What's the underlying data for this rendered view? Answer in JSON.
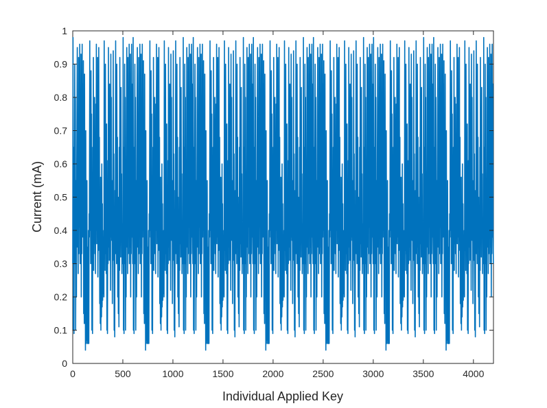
{
  "chart_data": {
    "type": "line",
    "title": "",
    "xlabel": "Individual Applied Key",
    "ylabel": "Current (mA)",
    "xlim": [
      0,
      4200
    ],
    "ylim": [
      0,
      1
    ],
    "xticks": [
      0,
      500,
      1000,
      1500,
      2000,
      2500,
      3000,
      3500,
      4000
    ],
    "yticks": [
      0,
      0.1,
      0.2,
      0.3,
      0.4,
      0.5,
      0.6,
      0.7,
      0.8,
      0.9,
      1
    ],
    "xtick_labels": [
      "0",
      "500",
      "1000",
      "1500",
      "2000",
      "2500",
      "3000",
      "3500",
      "4000"
    ],
    "ytick_labels": [
      "0",
      "0.1",
      "0.2",
      "0.3",
      "0.4",
      "0.5",
      "0.6",
      "0.7",
      "0.8",
      "0.9",
      "1"
    ],
    "grid": false,
    "legend": "none",
    "series": [
      {
        "name": "",
        "color": "#0072BD",
        "period": 600,
        "cycle_template": [
          [
            0,
            0.3
          ],
          [
            3,
            0.98
          ],
          [
            6,
            0.1
          ],
          [
            9,
            0.65
          ],
          [
            12,
            0.09
          ],
          [
            15,
            0.45
          ],
          [
            20,
            0.9
          ],
          [
            23,
            0.3
          ],
          [
            26,
            0.8
          ],
          [
            29,
            0.1
          ],
          [
            33,
            0.55
          ],
          [
            37,
            0.2
          ],
          [
            40,
            0.6
          ],
          [
            45,
            0.95
          ],
          [
            48,
            0.35
          ],
          [
            51,
            0.7
          ],
          [
            54,
            0.27
          ],
          [
            58,
            0.92
          ],
          [
            61,
            0.33
          ],
          [
            64,
            0.78
          ],
          [
            67,
            0.41
          ],
          [
            70,
            0.96
          ],
          [
            73,
            0.3
          ],
          [
            76,
            0.8
          ],
          [
            79,
            0.35
          ],
          [
            82,
            0.93
          ],
          [
            85,
            0.2
          ],
          [
            88,
            0.6
          ],
          [
            91,
            0.33
          ],
          [
            94,
            0.96
          ],
          [
            97,
            0.38
          ],
          [
            100,
            0.84
          ],
          [
            103,
            0.4
          ],
          [
            106,
            0.91
          ],
          [
            109,
            0.15
          ],
          [
            112,
            0.46
          ],
          [
            115,
            0.12
          ],
          [
            118,
            0.87
          ],
          [
            121,
            0.3
          ],
          [
            124,
            0.6
          ],
          [
            127,
            0.04
          ],
          [
            130,
            0.7
          ],
          [
            133,
            0.06
          ],
          [
            136,
            0.4
          ],
          [
            139,
            0.07
          ],
          [
            142,
            0.55
          ],
          [
            145,
            0.06
          ],
          [
            148,
            0.35
          ],
          [
            151,
            0.06
          ],
          [
            154,
            0.2
          ],
          [
            157,
            0.4
          ],
          [
            160,
            0.06
          ],
          [
            163,
            0.45
          ],
          [
            166,
            0.38
          ],
          [
            170,
            0.97
          ],
          [
            173,
            0.4
          ],
          [
            176,
            0.6
          ],
          [
            179,
            0.3
          ],
          [
            182,
            0.88
          ],
          [
            185,
            0.35
          ],
          [
            188,
            0.75
          ],
          [
            191,
            0.1
          ],
          [
            194,
            0.5
          ],
          [
            197,
            0.09
          ],
          [
            200,
            0.65
          ],
          [
            203,
            0.36
          ],
          [
            206,
            0.92
          ],
          [
            209,
            0.28
          ],
          [
            212,
            0.7
          ],
          [
            215,
            0.36
          ],
          [
            218,
            0.8
          ],
          [
            221,
            0.33
          ],
          [
            224,
            0.69
          ],
          [
            227,
            0.27
          ],
          [
            230,
            0.78
          ],
          [
            233,
            0.4
          ],
          [
            236,
            0.96
          ],
          [
            239,
            0.36
          ],
          [
            242,
            0.82
          ],
          [
            245,
            0.38
          ],
          [
            248,
            0.92
          ],
          [
            251,
            0.26
          ],
          [
            254,
            0.62
          ],
          [
            257,
            0.34
          ],
          [
            260,
            0.95
          ],
          [
            263,
            0.37
          ],
          [
            266,
            0.68
          ],
          [
            269,
            0.18
          ],
          [
            272,
            0.42
          ],
          [
            275,
            0.12
          ],
          [
            278,
            0.56
          ],
          [
            281,
            0.1
          ],
          [
            284,
            0.4
          ],
          [
            287,
            0.14
          ],
          [
            290,
            0.6
          ],
          [
            293,
            0.17
          ],
          [
            296,
            0.48
          ],
          [
            299,
            0.19
          ],
          [
            302,
            0.38
          ],
          [
            305,
            0.21
          ],
          [
            308,
            0.4
          ],
          [
            311,
            0.2
          ],
          [
            314,
            0.97
          ],
          [
            317,
            0.34
          ],
          [
            320,
            0.7
          ],
          [
            323,
            0.28
          ],
          [
            326,
            0.9
          ],
          [
            329,
            0.33
          ],
          [
            332,
            0.65
          ],
          [
            335,
            0.27
          ],
          [
            338,
            0.72
          ],
          [
            341,
            0.1
          ],
          [
            344,
            0.45
          ],
          [
            347,
            0.09
          ],
          [
            350,
            0.61
          ],
          [
            353,
            0.3
          ],
          [
            356,
            0.95
          ],
          [
            359,
            0.35
          ],
          [
            362,
            0.78
          ],
          [
            365,
            0.31
          ],
          [
            368,
            0.84
          ],
          [
            371,
            0.36
          ],
          [
            374,
            0.6
          ],
          [
            377,
            0.22
          ],
          [
            380,
            0.93
          ],
          [
            383,
            0.38
          ],
          [
            386,
            0.8
          ],
          [
            389,
            0.37
          ],
          [
            392,
            0.55
          ],
          [
            395,
            0.18
          ],
          [
            398,
            0.38
          ],
          [
            401,
            0.31
          ],
          [
            404,
            0.94
          ],
          [
            407,
            0.36
          ],
          [
            410,
            0.63
          ],
          [
            413,
            0.1
          ],
          [
            416,
            0.34
          ],
          [
            419,
            0.08
          ],
          [
            422,
            0.52
          ],
          [
            425,
            0.36
          ],
          [
            428,
            0.97
          ],
          [
            431,
            0.33
          ],
          [
            434,
            0.76
          ],
          [
            437,
            0.3
          ],
          [
            440,
            0.9
          ],
          [
            443,
            0.35
          ],
          [
            446,
            0.68
          ],
          [
            449,
            0.2
          ],
          [
            452,
            0.5
          ],
          [
            455,
            0.15
          ],
          [
            458,
            0.37
          ],
          [
            461,
            0.11
          ],
          [
            464,
            0.65
          ],
          [
            467,
            0.28
          ],
          [
            470,
            0.92
          ],
          [
            473,
            0.36
          ],
          [
            476,
            0.7
          ],
          [
            479,
            0.32
          ],
          [
            482,
            0.83
          ],
          [
            485,
            0.38
          ],
          [
            488,
            0.57
          ],
          [
            491,
            0.27
          ],
          [
            494,
            0.42
          ],
          [
            497,
            0.31
          ],
          [
            500,
            0.3
          ],
          [
            503,
            0.98
          ],
          [
            506,
            0.1
          ],
          [
            509,
            0.65
          ],
          [
            512,
            0.09
          ],
          [
            515,
            0.45
          ],
          [
            518,
            0.9
          ],
          [
            521,
            0.3
          ],
          [
            524,
            0.8
          ],
          [
            527,
            0.1
          ],
          [
            530,
            0.55
          ],
          [
            533,
            0.2
          ],
          [
            536,
            0.6
          ],
          [
            539,
            0.95
          ],
          [
            542,
            0.35
          ],
          [
            545,
            0.7
          ],
          [
            548,
            0.27
          ],
          [
            551,
            0.92
          ],
          [
            554,
            0.33
          ],
          [
            557,
            0.78
          ],
          [
            560,
            0.41
          ],
          [
            563,
            0.96
          ],
          [
            566,
            0.3
          ],
          [
            569,
            0.8
          ],
          [
            572,
            0.35
          ],
          [
            575,
            0.93
          ],
          [
            578,
            0.2
          ],
          [
            581,
            0.6
          ],
          [
            584,
            0.33
          ],
          [
            587,
            0.96
          ],
          [
            590,
            0.38
          ],
          [
            593,
            0.84
          ],
          [
            596,
            0.4
          ],
          [
            599,
            0.3
          ]
        ]
      }
    ]
  }
}
